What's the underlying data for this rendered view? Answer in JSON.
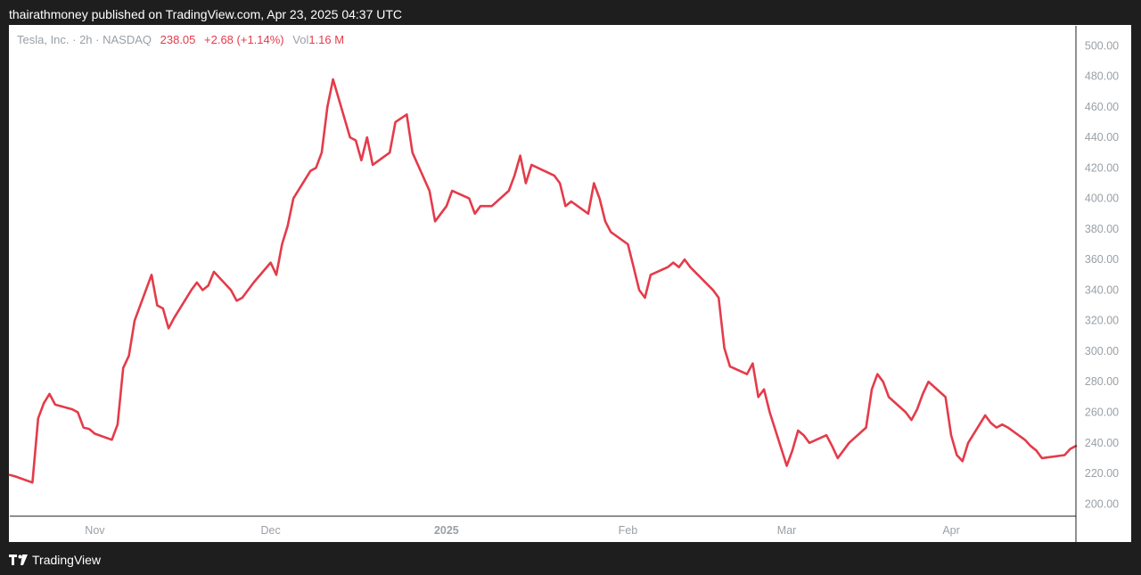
{
  "header": {
    "published": "thairathmoney published on TradingView.com, Apr 23, 2025 04:37 UTC"
  },
  "legend": {
    "symbol": "Tesla, Inc. · 2h · NASDAQ",
    "price": "238.05",
    "change": "+2.68 (+1.14%)",
    "vol_label": "Vol",
    "vol_value": "1.16 M"
  },
  "footer": {
    "brand": "TradingView"
  },
  "colors": {
    "line": "#e43b4a",
    "axis_text": "#9aa0a6",
    "frame": "#ffffff",
    "background": "#1e1e1e"
  },
  "chart_data": {
    "type": "line",
    "title": "",
    "xlabel": "",
    "ylabel": "",
    "ylim": [
      192,
      513
    ],
    "y_ticks": [
      "200.00",
      "220.00",
      "240.00",
      "260.00",
      "280.00",
      "300.00",
      "320.00",
      "340.00",
      "360.00",
      "380.00",
      "400.00",
      "420.00",
      "440.00",
      "460.00",
      "480.00",
      "500.00"
    ],
    "x_ticks": [
      {
        "label": "Nov",
        "date": "2024-11-01",
        "bold": false
      },
      {
        "label": "Dec",
        "date": "2024-12-02",
        "bold": false
      },
      {
        "label": "2025",
        "date": "2025-01-02",
        "bold": true
      },
      {
        "label": "Feb",
        "date": "2025-02-03",
        "bold": false
      },
      {
        "label": "Mar",
        "date": "2025-03-03",
        "bold": false
      },
      {
        "label": "Apr",
        "date": "2025-04-01",
        "bold": false
      }
    ],
    "xlim": [
      "2024-10-17",
      "2025-04-23"
    ],
    "grid": false,
    "series": [
      {
        "x": [
          "2024-10-17",
          "2024-10-18",
          "2024-10-21",
          "2024-10-22",
          "2024-10-23",
          "2024-10-24",
          "2024-10-25",
          "2024-10-28",
          "2024-10-29",
          "2024-10-30",
          "2024-10-31",
          "2024-11-01",
          "2024-11-04",
          "2024-11-05",
          "2024-11-06",
          "2024-11-07",
          "2024-11-08",
          "2024-11-11",
          "2024-11-12",
          "2024-11-13",
          "2024-11-14",
          "2024-11-15",
          "2024-11-18",
          "2024-11-19",
          "2024-11-20",
          "2024-11-21",
          "2024-11-22",
          "2024-11-25",
          "2024-11-26",
          "2024-11-27",
          "2024-11-29",
          "2024-12-02",
          "2024-12-03",
          "2024-12-04",
          "2024-12-05",
          "2024-12-06",
          "2024-12-09",
          "2024-12-10",
          "2024-12-11",
          "2024-12-12",
          "2024-12-13",
          "2024-12-16",
          "2024-12-17",
          "2024-12-18",
          "2024-12-19",
          "2024-12-20",
          "2024-12-23",
          "2024-12-24",
          "2024-12-26",
          "2024-12-27",
          "2024-12-30",
          "2024-12-31",
          "2025-01-02",
          "2025-01-03",
          "2025-01-06",
          "2025-01-07",
          "2025-01-08",
          "2025-01-10",
          "2025-01-13",
          "2025-01-14",
          "2025-01-15",
          "2025-01-16",
          "2025-01-17",
          "2025-01-21",
          "2025-01-22",
          "2025-01-23",
          "2025-01-24",
          "2025-01-27",
          "2025-01-28",
          "2025-01-29",
          "2025-01-30",
          "2025-01-31",
          "2025-02-03",
          "2025-02-04",
          "2025-02-05",
          "2025-02-06",
          "2025-02-07",
          "2025-02-10",
          "2025-02-11",
          "2025-02-12",
          "2025-02-13",
          "2025-02-14",
          "2025-02-18",
          "2025-02-19",
          "2025-02-20",
          "2025-02-21",
          "2025-02-24",
          "2025-02-25",
          "2025-02-26",
          "2025-02-27",
          "2025-02-28",
          "2025-03-03",
          "2025-03-04",
          "2025-03-05",
          "2025-03-06",
          "2025-03-07",
          "2025-03-10",
          "2025-03-11",
          "2025-03-12",
          "2025-03-13",
          "2025-03-14",
          "2025-03-17",
          "2025-03-18",
          "2025-03-19",
          "2025-03-20",
          "2025-03-21",
          "2025-03-24",
          "2025-03-25",
          "2025-03-26",
          "2025-03-27",
          "2025-03-28",
          "2025-03-31",
          "2025-04-01",
          "2025-04-02",
          "2025-04-03",
          "2025-04-04",
          "2025-04-07",
          "2025-04-08",
          "2025-04-09",
          "2025-04-10",
          "2025-04-11",
          "2025-04-14",
          "2025-04-15",
          "2025-04-16",
          "2025-04-17",
          "2025-04-21",
          "2025-04-22",
          "2025-04-23"
        ],
        "values": [
          219,
          218,
          214,
          256,
          266,
          272,
          265,
          262,
          260,
          250,
          249,
          246,
          242,
          252,
          289,
          297,
          320,
          350,
          330,
          328,
          315,
          322,
          340,
          345,
          340,
          343,
          352,
          340,
          333,
          335,
          345,
          358,
          350,
          370,
          382,
          400,
          418,
          420,
          430,
          460,
          478,
          440,
          438,
          425,
          440,
          422,
          430,
          450,
          455,
          430,
          405,
          385,
          395,
          405,
          400,
          390,
          395,
          395,
          405,
          415,
          428,
          410,
          422,
          415,
          410,
          395,
          398,
          390,
          410,
          400,
          385,
          378,
          370,
          355,
          340,
          335,
          350,
          355,
          358,
          355,
          360,
          355,
          340,
          335,
          302,
          290,
          285,
          292,
          270,
          275,
          260,
          225,
          235,
          248,
          245,
          240,
          245,
          238,
          230,
          235,
          240,
          250,
          275,
          285,
          280,
          270,
          260,
          255,
          262,
          272,
          280,
          270,
          245,
          232,
          228,
          240,
          258,
          253,
          250,
          252,
          250,
          242,
          238,
          235,
          230,
          232,
          236,
          238
        ]
      }
    ]
  }
}
